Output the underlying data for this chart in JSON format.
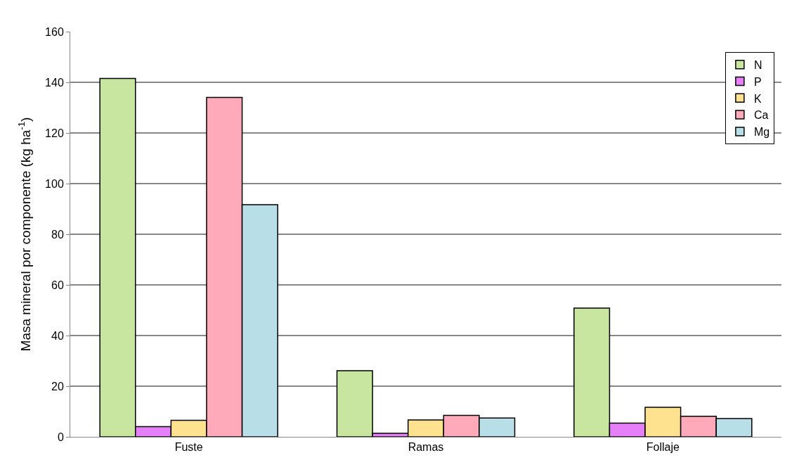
{
  "chart_data": {
    "type": "bar",
    "ylabel": "Masa mineral por componente (kg ha$^{-1}$)",
    "categories": [
      "Fuste",
      "Ramas",
      "Follaje"
    ],
    "series": [
      {
        "name": "N",
        "color": "#c8e6a0",
        "values": [
          141.5,
          26.1,
          50.8
        ]
      },
      {
        "name": "P",
        "color": "#e680f8",
        "values": [
          4.0,
          1.4,
          5.4
        ]
      },
      {
        "name": "K",
        "color": "#fee290",
        "values": [
          6.5,
          6.7,
          11.7
        ]
      },
      {
        "name": "Ca",
        "color": "#ffaabb",
        "values": [
          134,
          8.5,
          8.1
        ]
      },
      {
        "name": "Mg",
        "color": "#b8dee8",
        "values": [
          91.7,
          7.4,
          7.2
        ]
      }
    ],
    "ylim": [
      0,
      160
    ],
    "yticks": [
      0,
      20,
      40,
      60,
      80,
      100,
      120,
      140,
      160
    ],
    "grid": "y",
    "legend": "top right"
  }
}
